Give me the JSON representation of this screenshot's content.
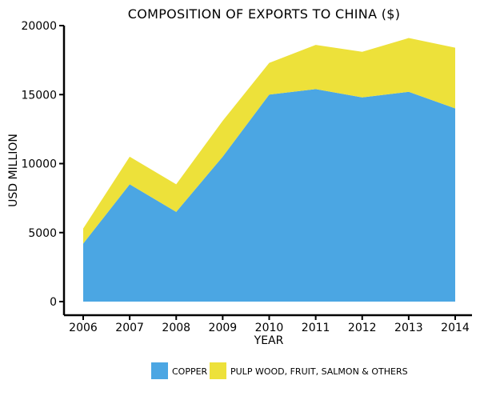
{
  "chart_data": {
    "type": "area",
    "stacked": true,
    "title": "COMPOSITION OF EXPORTS TO CHINA ($)",
    "xlabel": "YEAR",
    "ylabel": "USD MILLION",
    "x": [
      "2006",
      "2007",
      "2008",
      "2009",
      "2010",
      "2011",
      "2012",
      "2013",
      "2014"
    ],
    "ylim": [
      0,
      20000
    ],
    "yticks": [
      0,
      5000,
      10000,
      15000,
      20000
    ],
    "grid": false,
    "legend_position": "bottom",
    "series": [
      {
        "name": "COPPER",
        "color": "#4ba6e3",
        "values": [
          4200,
          8500,
          6500,
          10500,
          15000,
          15400,
          14800,
          15200,
          14000
        ]
      },
      {
        "name": "PULP WOOD, FRUIT, SALMON & OTHERS",
        "color": "#ede13a",
        "values": [
          1100,
          2000,
          2000,
          2600,
          2300,
          3200,
          3300,
          3900,
          4400
        ]
      }
    ]
  }
}
